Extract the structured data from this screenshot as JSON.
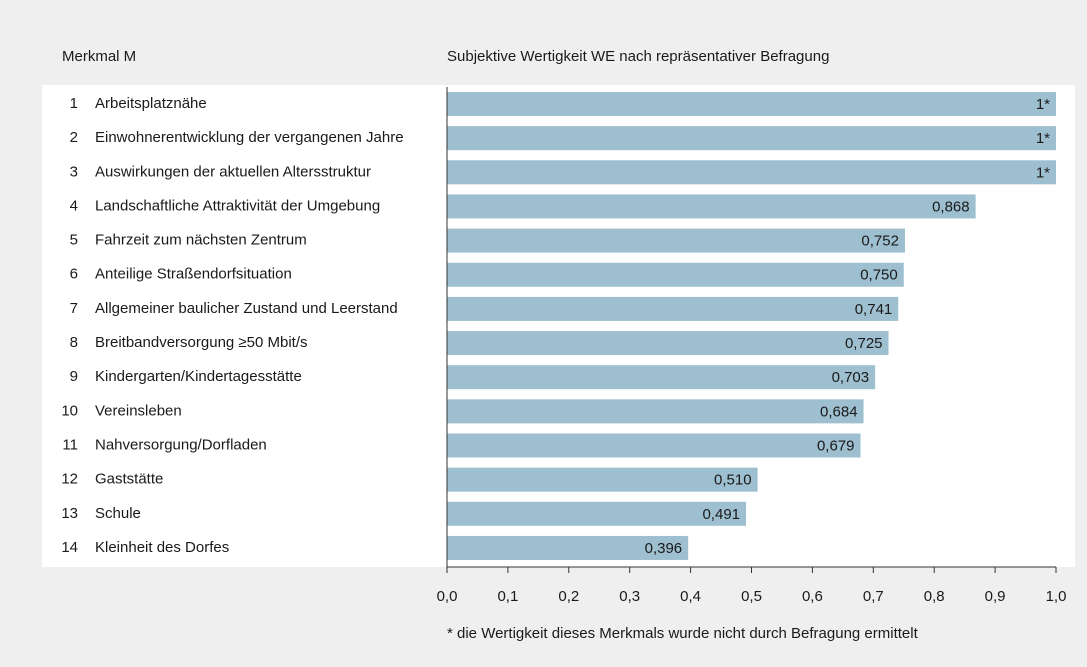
{
  "chart_data": {
    "type": "barh",
    "column_header": "Merkmal M",
    "title": "Subjektive Wertigkeit WE nach repräsentativer Befragung",
    "row_numbers": [
      "1",
      "2",
      "3",
      "4",
      "5",
      "6",
      "7",
      "8",
      "9",
      "10",
      "11",
      "12",
      "13",
      "14"
    ],
    "categories": [
      "Arbeitsplatznähe",
      "Einwohnerentwicklung der vergangenen Jahre",
      "Auswirkungen der aktuellen Altersstruktur",
      "Landschaftliche Attraktivität der Umgebung",
      "Fahrzeit zum nächsten Zentrum",
      "Anteilige Straßendorfsituation",
      "Allgemeiner baulicher Zustand und Leerstand",
      "Breitbandversorgung ≥50 Mbit/s",
      "Kindergarten/Kindertagesstätte",
      "Vereinsleben",
      "Nahversorgung/Dorfladen",
      "Gaststätte",
      "Schule",
      "Kleinheit des Dorfes"
    ],
    "values": [
      1,
      1,
      1,
      0.868,
      0.752,
      0.75,
      0.741,
      0.725,
      0.703,
      0.684,
      0.679,
      0.51,
      0.491,
      0.396
    ],
    "value_labels": [
      "1*",
      "1*",
      "1*",
      "0,868",
      "0,752",
      "0,750",
      "0,741",
      "0,725",
      "0,703",
      "0,684",
      "0,679",
      "0,510",
      "0,491",
      "0,396"
    ],
    "color": "#9dbfcf",
    "xlim": [
      0,
      1
    ],
    "xticks": [
      {
        "value": 0,
        "label": "0,0"
      },
      {
        "value": 0.1,
        "label": "0,1"
      },
      {
        "value": 0.2,
        "label": "0,2"
      },
      {
        "value": 0.3,
        "label": "0,3"
      },
      {
        "value": 0.4,
        "label": "0,4"
      },
      {
        "value": 0.5,
        "label": "0,5"
      },
      {
        "value": 0.6,
        "label": "0,6"
      },
      {
        "value": 0.7,
        "label": "0,7"
      },
      {
        "value": 0.8,
        "label": "0,8"
      },
      {
        "value": 0.9,
        "label": "0,9"
      },
      {
        "value": 1,
        "label": "1,0"
      }
    ],
    "footnote": "* die Wertigkeit dieses Merkmals wurde nicht durch Befragung ermittelt"
  }
}
